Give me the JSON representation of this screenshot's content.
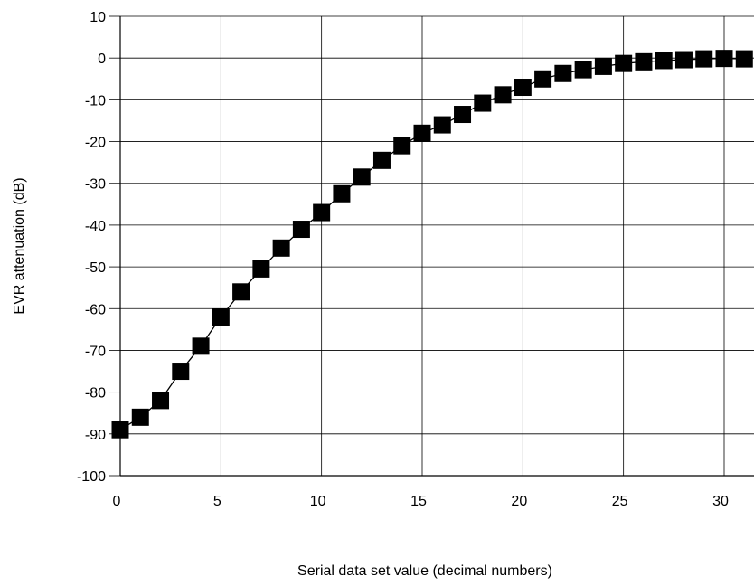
{
  "chart_data": {
    "type": "line",
    "title": "",
    "xlabel": "Serial data set value (decimal numbers)",
    "ylabel": "EVR attenuation (dB)",
    "xlim": [
      0,
      31.5
    ],
    "ylim": [
      -100,
      10
    ],
    "x_ticks": [
      0,
      5,
      10,
      15,
      20,
      25,
      30
    ],
    "y_ticks": [
      10,
      0,
      -10,
      -20,
      -30,
      -40,
      -50,
      -60,
      -70,
      -80,
      -90,
      -100
    ],
    "grid": true,
    "marker": "square",
    "series": [
      {
        "x": [
          0,
          1,
          2,
          3,
          4,
          5,
          6,
          7,
          8,
          9,
          10,
          11,
          12,
          13,
          14,
          15,
          16,
          17,
          18,
          19,
          20,
          21,
          22,
          23,
          24,
          25,
          26,
          27,
          28,
          29,
          30,
          31
        ],
        "values": [
          -89,
          -86,
          -82,
          -75,
          -69,
          -62,
          -56,
          -50.5,
          -45.5,
          -41,
          -37,
          -32.5,
          -28.5,
          -24.5,
          -21,
          -18,
          -16,
          -13.5,
          -10.8,
          -8.8,
          -7,
          -5,
          -3.7,
          -2.8,
          -2,
          -1.3,
          -0.9,
          -0.6,
          -0.4,
          -0.2,
          -0.1,
          -0.2
        ]
      }
    ]
  }
}
